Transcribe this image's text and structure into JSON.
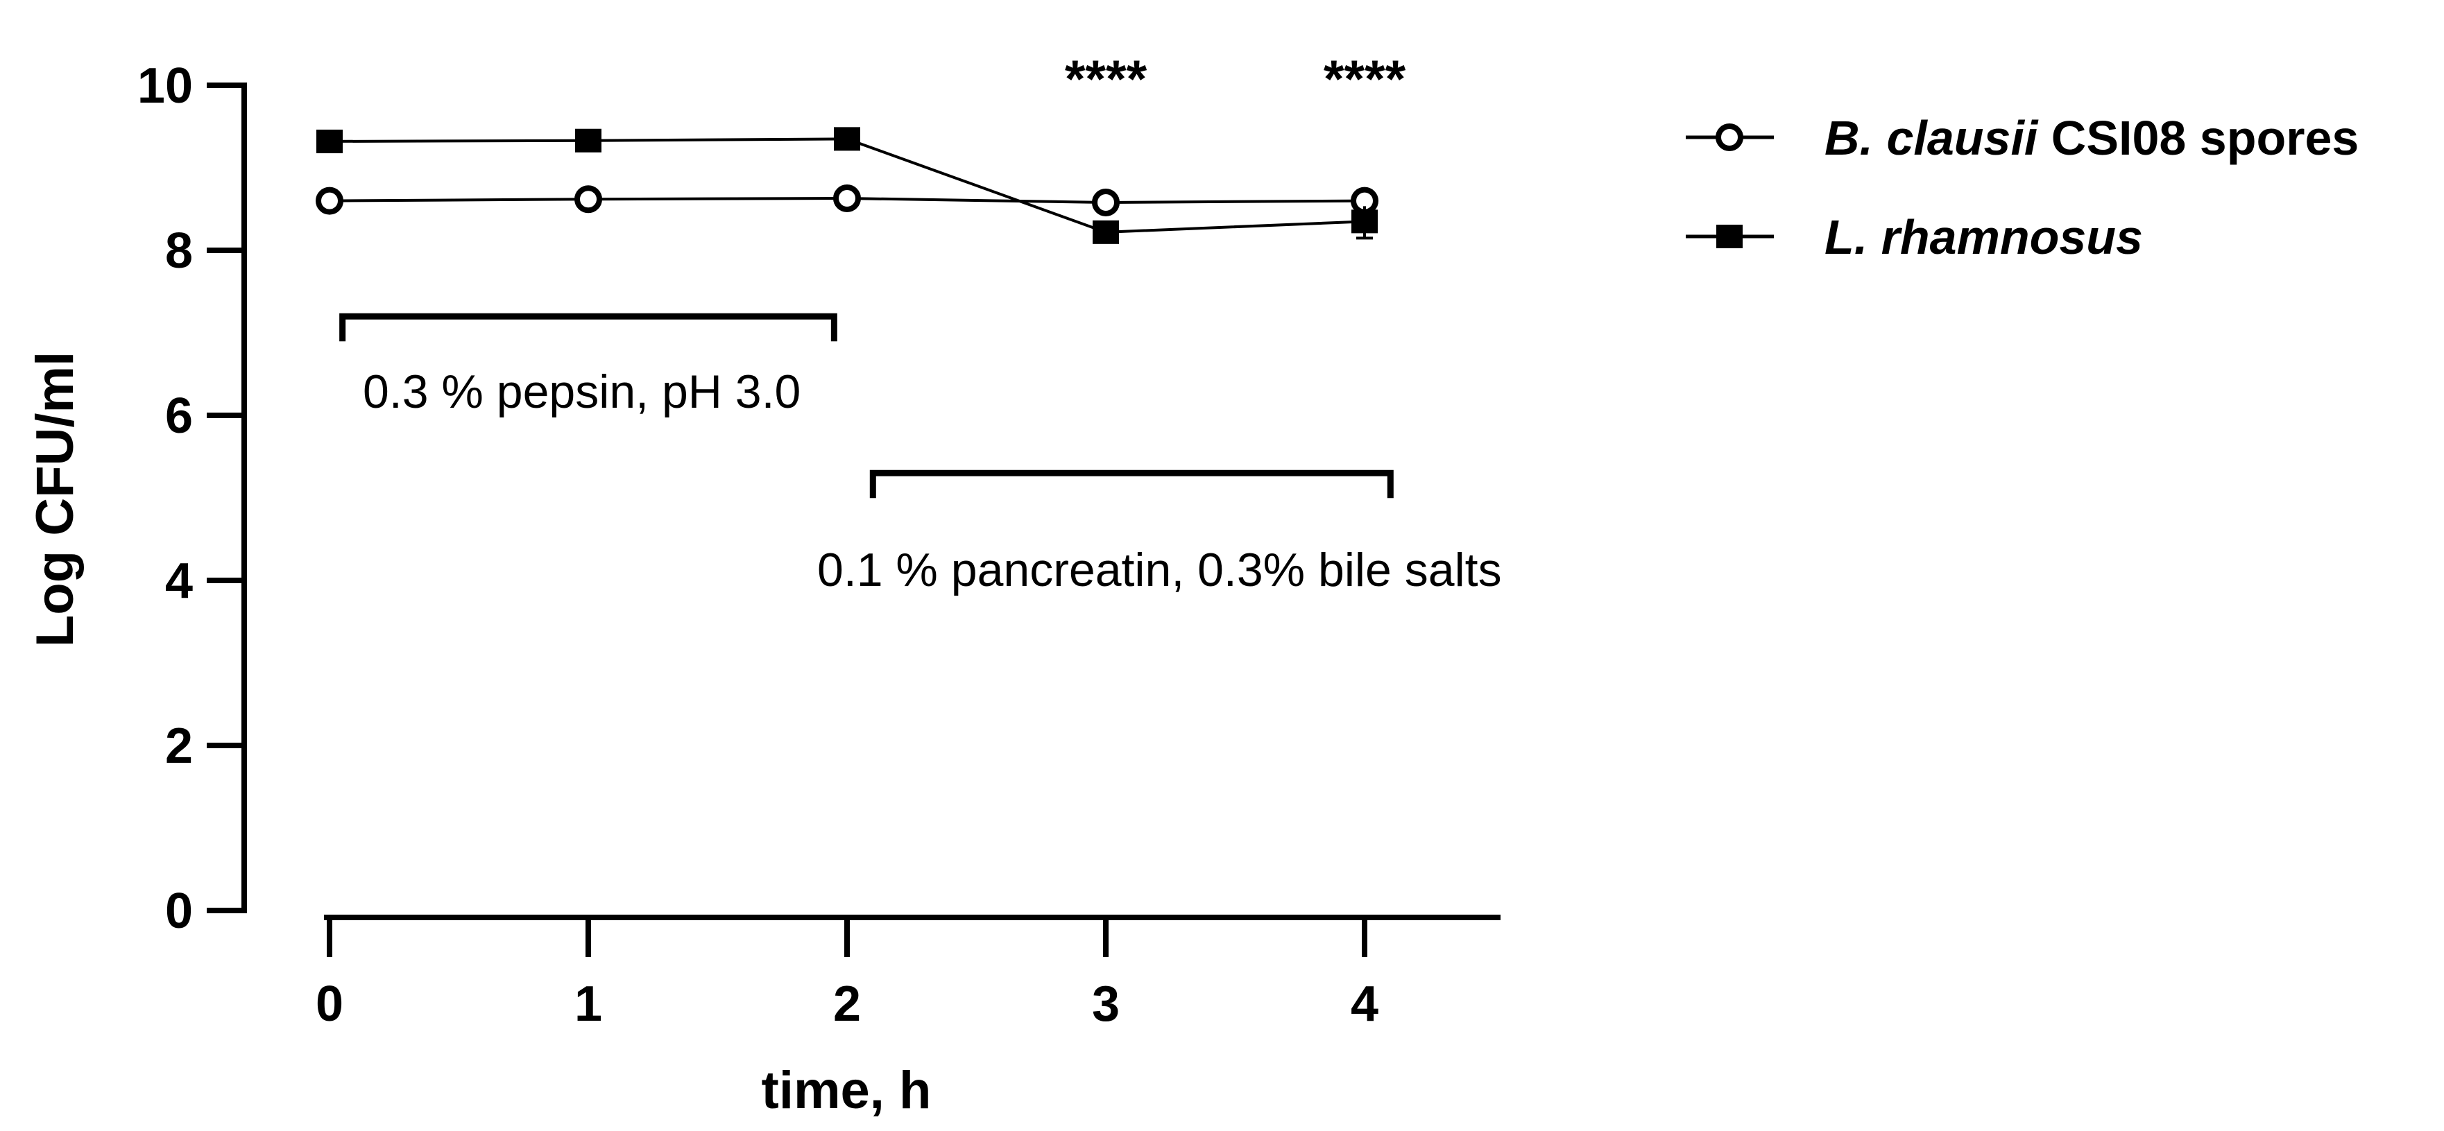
{
  "chart_data": {
    "type": "line",
    "x": [
      0,
      1,
      2,
      3,
      4
    ],
    "xticks": [
      "0",
      "1",
      "2",
      "3",
      "4"
    ],
    "xlabel": "time, h",
    "ylabel": "Log CFU/ml",
    "yticks": [
      "0",
      "2",
      "4",
      "6",
      "8",
      "10"
    ],
    "xlim": [
      -0.1,
      4.5
    ],
    "ylim": [
      0,
      10
    ],
    "grid": false,
    "legend_position": "top-right",
    "series": [
      {
        "legend_italic": "B. clausii",
        "legend_plain": " CSI08 spores",
        "marker": "open-circle",
        "color": "#000000",
        "values": [
          8.6,
          8.62,
          8.63,
          8.58,
          8.6
        ]
      },
      {
        "legend_italic": "L. rhamnosus",
        "legend_plain": "",
        "marker": "filled-square",
        "color": "#000000",
        "values": [
          9.32,
          9.33,
          9.35,
          8.22,
          8.35
        ]
      }
    ],
    "significance": [
      {
        "x": 3,
        "label": "****"
      },
      {
        "x": 4,
        "label": "****"
      }
    ],
    "phases": [
      {
        "label": "0.3 % pepsin, pH 3.0",
        "x_start": 0.05,
        "x_end": 1.95,
        "y": 7.2
      },
      {
        "label": "0.1 % pancreatin, 0.3% bile salts",
        "x_start": 2.1,
        "x_end": 4.1,
        "y": 5.3
      }
    ]
  }
}
